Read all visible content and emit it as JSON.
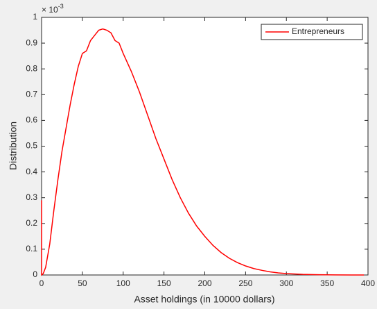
{
  "chart_data": {
    "type": "line",
    "x_label": "Asset holdings (in 10000 dollars)",
    "y_label": "Distribution",
    "y_multiplier": "× 10",
    "y_multiplier_exp": "-3",
    "x": [
      0,
      0,
      2,
      5,
      10,
      15,
      20,
      25,
      30,
      35,
      40,
      45,
      50,
      55,
      60,
      65,
      70,
      75,
      80,
      85,
      90,
      95,
      100,
      110,
      120,
      130,
      140,
      150,
      160,
      170,
      180,
      190,
      200,
      210,
      220,
      230,
      240,
      250,
      260,
      270,
      280,
      290,
      300,
      320,
      340,
      360,
      380,
      395
    ],
    "series": [
      {
        "name": "Entrepreneurs",
        "color": "#ff0000",
        "values": [
          0.29,
          0,
          0.005,
          0.03,
          0.12,
          0.25,
          0.37,
          0.48,
          0.57,
          0.66,
          0.74,
          0.81,
          0.86,
          0.87,
          0.91,
          0.93,
          0.95,
          0.955,
          0.95,
          0.94,
          0.91,
          0.9,
          0.86,
          0.79,
          0.71,
          0.62,
          0.53,
          0.45,
          0.37,
          0.3,
          0.24,
          0.19,
          0.15,
          0.115,
          0.087,
          0.065,
          0.048,
          0.035,
          0.025,
          0.018,
          0.012,
          0.008,
          0.0055,
          0.0025,
          0.001,
          0.0004,
          0.0001,
          0
        ]
      }
    ],
    "xlim": [
      0,
      400
    ],
    "xticks": [
      0,
      50,
      100,
      150,
      200,
      250,
      300,
      350,
      400
    ],
    "ylim": [
      0,
      1
    ],
    "yticks": [
      0,
      0.1,
      0.2,
      0.3,
      0.4,
      0.5,
      0.6,
      0.7,
      0.8,
      0.9,
      1
    ],
    "legend": "northeast",
    "grid": false
  }
}
